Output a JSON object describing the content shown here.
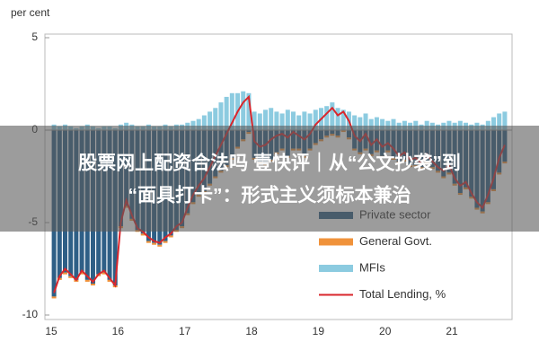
{
  "chart_data": {
    "type": "bar",
    "y_label": "per cent",
    "categories": [
      "15",
      null,
      null,
      null,
      null,
      null,
      null,
      null,
      null,
      null,
      null,
      null,
      "16",
      null,
      null,
      null,
      null,
      null,
      null,
      null,
      null,
      null,
      null,
      null,
      "17",
      null,
      null,
      null,
      null,
      null,
      null,
      null,
      null,
      null,
      null,
      null,
      "18",
      null,
      null,
      null,
      null,
      null,
      null,
      null,
      null,
      null,
      null,
      null,
      "19",
      null,
      null,
      null,
      null,
      null,
      null,
      null,
      null,
      null,
      null,
      null,
      "20",
      null,
      null,
      null,
      null,
      null,
      null,
      null,
      null,
      null,
      null,
      null,
      "21",
      null,
      null,
      null,
      null,
      null,
      null,
      null,
      null,
      null
    ],
    "ylim": [
      -10,
      5
    ],
    "yticks": [
      5,
      0,
      -5,
      -10
    ],
    "grid": false,
    "legend": "lower right",
    "series": [
      {
        "name": "Private sector",
        "type": "bar",
        "color": "#2e5f86",
        "values": [
          -9.0,
          -8.0,
          -7.7,
          -7.9,
          -8.1,
          -7.7,
          -8.1,
          -8.3,
          -7.8,
          -7.7,
          -8.1,
          -8.4,
          -5.2,
          -4.1,
          -4.8,
          -5.4,
          -5.6,
          -6.0,
          -6.1,
          -6.2,
          -6.0,
          -5.7,
          -5.4,
          -5.2,
          -4.5,
          -3.9,
          -3.5,
          -3.3,
          -2.9,
          -2.5,
          -2.2,
          -1.9,
          -1.5,
          -0.9,
          -0.5,
          -0.1,
          -1.5,
          -1.7,
          -1.8,
          -1.6,
          -1.2,
          -1.0,
          -1.4,
          -1.0,
          -1.0,
          -1.4,
          -1.0,
          -0.7,
          -0.5,
          -0.3,
          -0.2,
          -0.3,
          0.0,
          -0.4,
          -1.0,
          -1.2,
          -1.0,
          -1.3,
          -1.1,
          -1.4,
          -1.1,
          -1.5,
          -1.7,
          -1.6,
          -1.9,
          -1.9,
          -2.0,
          -1.7,
          -2.0,
          -2.2,
          -2.5,
          -2.3,
          -2.9,
          -3.4,
          -3.1,
          -3.6,
          -4.2,
          -4.4,
          -3.9,
          -3.2,
          -2.3,
          -1.7
        ]
      },
      {
        "name": "General Govt.",
        "type": "bar",
        "color": "#f0923a",
        "values": [
          -0.1,
          -0.1,
          -0.1,
          -0.1,
          -0.1,
          -0.1,
          -0.1,
          -0.1,
          -0.1,
          -0.1,
          -0.1,
          -0.1,
          -0.1,
          -0.1,
          -0.1,
          -0.1,
          -0.1,
          -0.1,
          -0.1,
          -0.1,
          -0.1,
          -0.1,
          -0.1,
          -0.1,
          -0.1,
          -0.1,
          -0.1,
          -0.1,
          -0.1,
          -0.1,
          -0.1,
          -0.1,
          -0.1,
          -0.1,
          -0.1,
          -0.1,
          -0.1,
          -0.1,
          -0.1,
          -0.1,
          -0.1,
          -0.1,
          -0.1,
          -0.1,
          -0.1,
          -0.1,
          -0.1,
          -0.1,
          -0.1,
          -0.1,
          -0.1,
          -0.1,
          -0.1,
          -0.1,
          -0.1,
          -0.1,
          -0.1,
          -0.1,
          -0.1,
          -0.1,
          -0.1,
          -0.1,
          -0.1,
          -0.1,
          -0.1,
          -0.1,
          -0.1,
          -0.1,
          -0.1,
          -0.1,
          -0.1,
          -0.1,
          -0.1,
          -0.1,
          -0.1,
          -0.1,
          -0.1,
          -0.1,
          -0.1,
          -0.1,
          -0.1,
          -0.1
        ]
      },
      {
        "name": "MFIs",
        "type": "bar",
        "color": "#8ccbe0",
        "values": [
          0.3,
          0.2,
          0.3,
          0.2,
          0.1,
          0.2,
          0.3,
          0.2,
          0.1,
          0.2,
          0.2,
          0.1,
          0.3,
          0.4,
          0.3,
          0.2,
          0.2,
          0.3,
          0.2,
          0.2,
          0.3,
          0.2,
          0.3,
          0.3,
          0.4,
          0.5,
          0.6,
          0.8,
          1.0,
          1.2,
          1.5,
          1.8,
          2.0,
          2.0,
          2.1,
          2.0,
          1.0,
          0.9,
          1.1,
          1.2,
          1.0,
          0.9,
          1.1,
          1.0,
          0.8,
          1.0,
          0.9,
          1.1,
          1.2,
          1.3,
          1.5,
          1.2,
          1.1,
          1.0,
          0.8,
          0.7,
          0.9,
          0.6,
          0.7,
          0.6,
          0.5,
          0.6,
          0.4,
          0.5,
          0.4,
          0.5,
          0.3,
          0.5,
          0.4,
          0.3,
          0.4,
          0.5,
          0.4,
          0.5,
          0.4,
          0.3,
          0.4,
          0.3,
          0.5,
          0.7,
          0.9,
          1.0
        ]
      },
      {
        "name": "Total Lending, %",
        "type": "line",
        "color": "#d9262c",
        "values": [
          -8.8,
          -7.9,
          -7.5,
          -7.8,
          -8.1,
          -7.6,
          -7.9,
          -8.2,
          -7.8,
          -7.6,
          -8.0,
          -8.4,
          -5.0,
          -3.8,
          -4.6,
          -5.3,
          -5.5,
          -5.8,
          -6.0,
          -6.1,
          -5.8,
          -5.6,
          -5.2,
          -5.0,
          -4.2,
          -3.5,
          -3.0,
          -2.6,
          -2.0,
          -1.4,
          -0.8,
          -0.2,
          0.4,
          1.0,
          1.5,
          1.8,
          -0.6,
          -0.9,
          -0.8,
          -0.5,
          -0.3,
          -0.2,
          -0.4,
          -0.1,
          -0.3,
          -0.5,
          -0.2,
          0.3,
          0.6,
          0.9,
          1.2,
          0.8,
          1.0,
          0.5,
          -0.3,
          -0.6,
          -0.2,
          -0.8,
          -0.5,
          -0.9,
          -0.7,
          -1.0,
          -1.4,
          -1.2,
          -1.6,
          -1.5,
          -1.8,
          -1.3,
          -1.7,
          -2.0,
          -2.2,
          -1.9,
          -2.6,
          -3.0,
          -2.8,
          -3.4,
          -3.9,
          -4.2,
          -3.5,
          -2.6,
          -1.5,
          -0.8
        ]
      }
    ]
  },
  "overlay": {
    "lines": [
      "股票网上配资合法吗 壹快评｜从“公文抄袭”到",
      "“面具打卡”：形式主义须标本兼治"
    ]
  }
}
